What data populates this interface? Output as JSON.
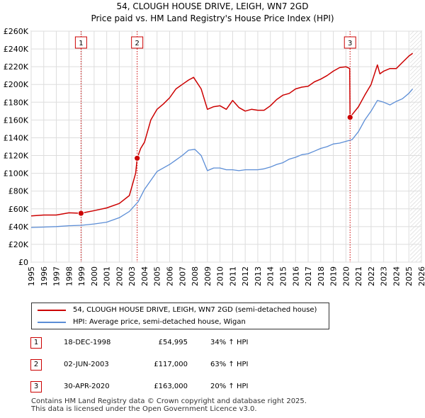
{
  "title": {
    "line1": "54, CLOUGH HOUSE DRIVE, LEIGH, WN7 2GD",
    "line2": "Price paid vs. HM Land Registry's House Price Index (HPI)"
  },
  "chart_data": {
    "type": "line",
    "title": "54, CLOUGH HOUSE DRIVE, LEIGH, WN7 2GD — Price paid vs. HM Land Registry's House Price Index (HPI)",
    "xlim": [
      1995,
      2026
    ],
    "ylim": [
      0,
      260000
    ],
    "yticks": [
      0,
      20000,
      40000,
      60000,
      80000,
      100000,
      120000,
      140000,
      160000,
      180000,
      200000,
      220000,
      240000,
      260000
    ],
    "ytick_labels": [
      "£0",
      "£20K",
      "£40K",
      "£60K",
      "£80K",
      "£100K",
      "£120K",
      "£140K",
      "£160K",
      "£180K",
      "£200K",
      "£220K",
      "£240K",
      "£260K"
    ],
    "xticks": [
      "1995",
      "1996",
      "1997",
      "1998",
      "1999",
      "2000",
      "2001",
      "2002",
      "2003",
      "2004",
      "2005",
      "2006",
      "2007",
      "2008",
      "2009",
      "2010",
      "2011",
      "2012",
      "2013",
      "2014",
      "2015",
      "2016",
      "2017",
      "2018",
      "2019",
      "2020",
      "2021",
      "2022",
      "2023",
      "2024",
      "2025",
      "2026"
    ],
    "grid": true,
    "colors": {
      "property": "#cc0000",
      "hpi": "#5b8dd6",
      "marker_line": "#cc0000",
      "hatch": "#cccccc"
    },
    "forecast_start": 2025.1,
    "series": [
      {
        "name": "54, CLOUGH HOUSE DRIVE, LEIGH, WN7 2GD (semi-detached house)",
        "x": [
          1995.0,
          1996.0,
          1997.0,
          1998.0,
          1998.96,
          2000.0,
          2001.0,
          2002.0,
          2002.8,
          2003.0,
          2003.3,
          2003.42,
          2003.7,
          2004.0,
          2004.5,
          2005.0,
          2005.5,
          2006.0,
          2006.5,
          2007.0,
          2007.5,
          2007.9,
          2008.5,
          2009.0,
          2009.5,
          2010.0,
          2010.5,
          2011.0,
          2011.5,
          2012.0,
          2012.5,
          2013.0,
          2013.5,
          2014.0,
          2014.5,
          2015.0,
          2015.5,
          2016.0,
          2016.5,
          2017.0,
          2017.5,
          2018.0,
          2018.5,
          2019.0,
          2019.5,
          2020.0,
          2020.3,
          2020.33,
          2020.6,
          2021.0,
          2021.5,
          2022.0,
          2022.5,
          2022.7,
          2023.0,
          2023.5,
          2024.0,
          2024.5,
          2025.0,
          2025.3
        ],
        "values": [
          52000,
          53000,
          53000,
          55500,
          54995,
          58000,
          61000,
          66000,
          75000,
          85000,
          100000,
          117000,
          128000,
          135000,
          160000,
          172000,
          178000,
          185000,
          195000,
          200000,
          205000,
          208000,
          195000,
          172000,
          175000,
          176000,
          172000,
          182000,
          174000,
          170000,
          172000,
          171000,
          171000,
          176000,
          183000,
          188000,
          190000,
          195000,
          197000,
          198000,
          203000,
          206000,
          210000,
          215000,
          219000,
          220000,
          218000,
          163000,
          168000,
          175000,
          188000,
          200000,
          222000,
          212000,
          215000,
          218000,
          218000,
          225000,
          232000,
          235000
        ]
      },
      {
        "name": "HPI: Average price, semi-detached house, Wigan",
        "x": [
          1995.0,
          1996.0,
          1997.0,
          1998.0,
          1999.0,
          2000.0,
          2001.0,
          2002.0,
          2002.8,
          2003.5,
          2004.0,
          2004.5,
          2005.0,
          2005.5,
          2006.0,
          2006.5,
          2007.0,
          2007.5,
          2008.0,
          2008.5,
          2009.0,
          2009.5,
          2010.0,
          2010.5,
          2011.0,
          2011.5,
          2012.0,
          2012.5,
          2013.0,
          2013.5,
          2014.0,
          2014.5,
          2015.0,
          2015.5,
          2016.0,
          2016.5,
          2017.0,
          2017.5,
          2018.0,
          2018.5,
          2019.0,
          2019.5,
          2020.0,
          2020.5,
          2021.0,
          2021.5,
          2022.0,
          2022.5,
          2023.0,
          2023.5,
          2024.0,
          2024.5,
          2025.0,
          2025.3
        ],
        "values": [
          39000,
          39500,
          40000,
          41000,
          41500,
          43000,
          45000,
          50000,
          57000,
          68000,
          82000,
          92000,
          102000,
          106000,
          110000,
          115000,
          120000,
          126000,
          127000,
          120000,
          103000,
          106000,
          106000,
          104000,
          104000,
          103000,
          104000,
          104000,
          104000,
          105000,
          107000,
          110000,
          112000,
          116000,
          118000,
          121000,
          122000,
          125000,
          128000,
          130000,
          133000,
          134000,
          136000,
          138000,
          147000,
          160000,
          170000,
          182000,
          180000,
          177000,
          181000,
          184000,
          190000,
          195000
        ]
      }
    ],
    "sales": [
      {
        "id": "1",
        "x": 1998.96,
        "value": 54995
      },
      {
        "id": "2",
        "x": 2003.42,
        "value": 117000
      },
      {
        "id": "3",
        "x": 2020.33,
        "value": 163000
      }
    ]
  },
  "legend": {
    "property_label": "54, CLOUGH HOUSE DRIVE, LEIGH, WN7 2GD (semi-detached house)",
    "hpi_label": "HPI: Average price, semi-detached house, Wigan"
  },
  "sales_table": [
    {
      "num": "1",
      "date": "18-DEC-1998",
      "price": "£54,995",
      "hpi": "34% ↑ HPI"
    },
    {
      "num": "2",
      "date": "02-JUN-2003",
      "price": "£117,000",
      "hpi": "63% ↑ HPI"
    },
    {
      "num": "3",
      "date": "30-APR-2020",
      "price": "£163,000",
      "hpi": "20% ↑ HPI"
    }
  ],
  "footer": {
    "line1": "Contains HM Land Registry data © Crown copyright and database right 2025.",
    "line2": "This data is licensed under the Open Government Licence v3.0."
  }
}
